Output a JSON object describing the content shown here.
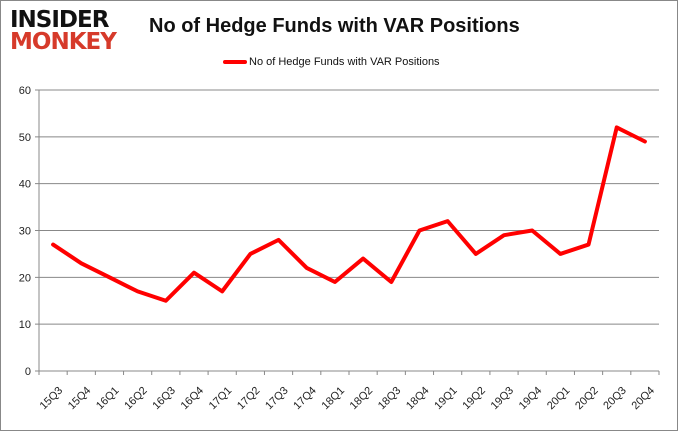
{
  "logo": {
    "line1": "INSIDER",
    "line2": "MONKEY"
  },
  "chart_data": {
    "type": "line",
    "title": "No of Hedge Funds with VAR Positions",
    "categories": [
      "15Q3",
      "15Q4",
      "16Q1",
      "16Q2",
      "16Q3",
      "16Q4",
      "17Q1",
      "17Q2",
      "17Q3",
      "17Q4",
      "18Q1",
      "18Q2",
      "18Q3",
      "18Q4",
      "19Q1",
      "19Q2",
      "19Q3",
      "19Q4",
      "20Q1",
      "20Q2",
      "20Q3",
      "20Q4"
    ],
    "series": [
      {
        "name": "No of Hedge Funds with VAR Positions",
        "color": "#ff0000",
        "values": [
          27,
          23,
          20,
          17,
          15,
          21,
          17,
          25,
          28,
          22,
          19,
          24,
          19,
          30,
          32,
          25,
          29,
          30,
          25,
          27,
          52,
          49
        ]
      }
    ],
    "ylim": [
      0,
      60
    ],
    "yticks": [
      0,
      10,
      20,
      30,
      40,
      50,
      60
    ],
    "grid": true,
    "legend": "top-center",
    "xlabel": "",
    "ylabel": ""
  }
}
